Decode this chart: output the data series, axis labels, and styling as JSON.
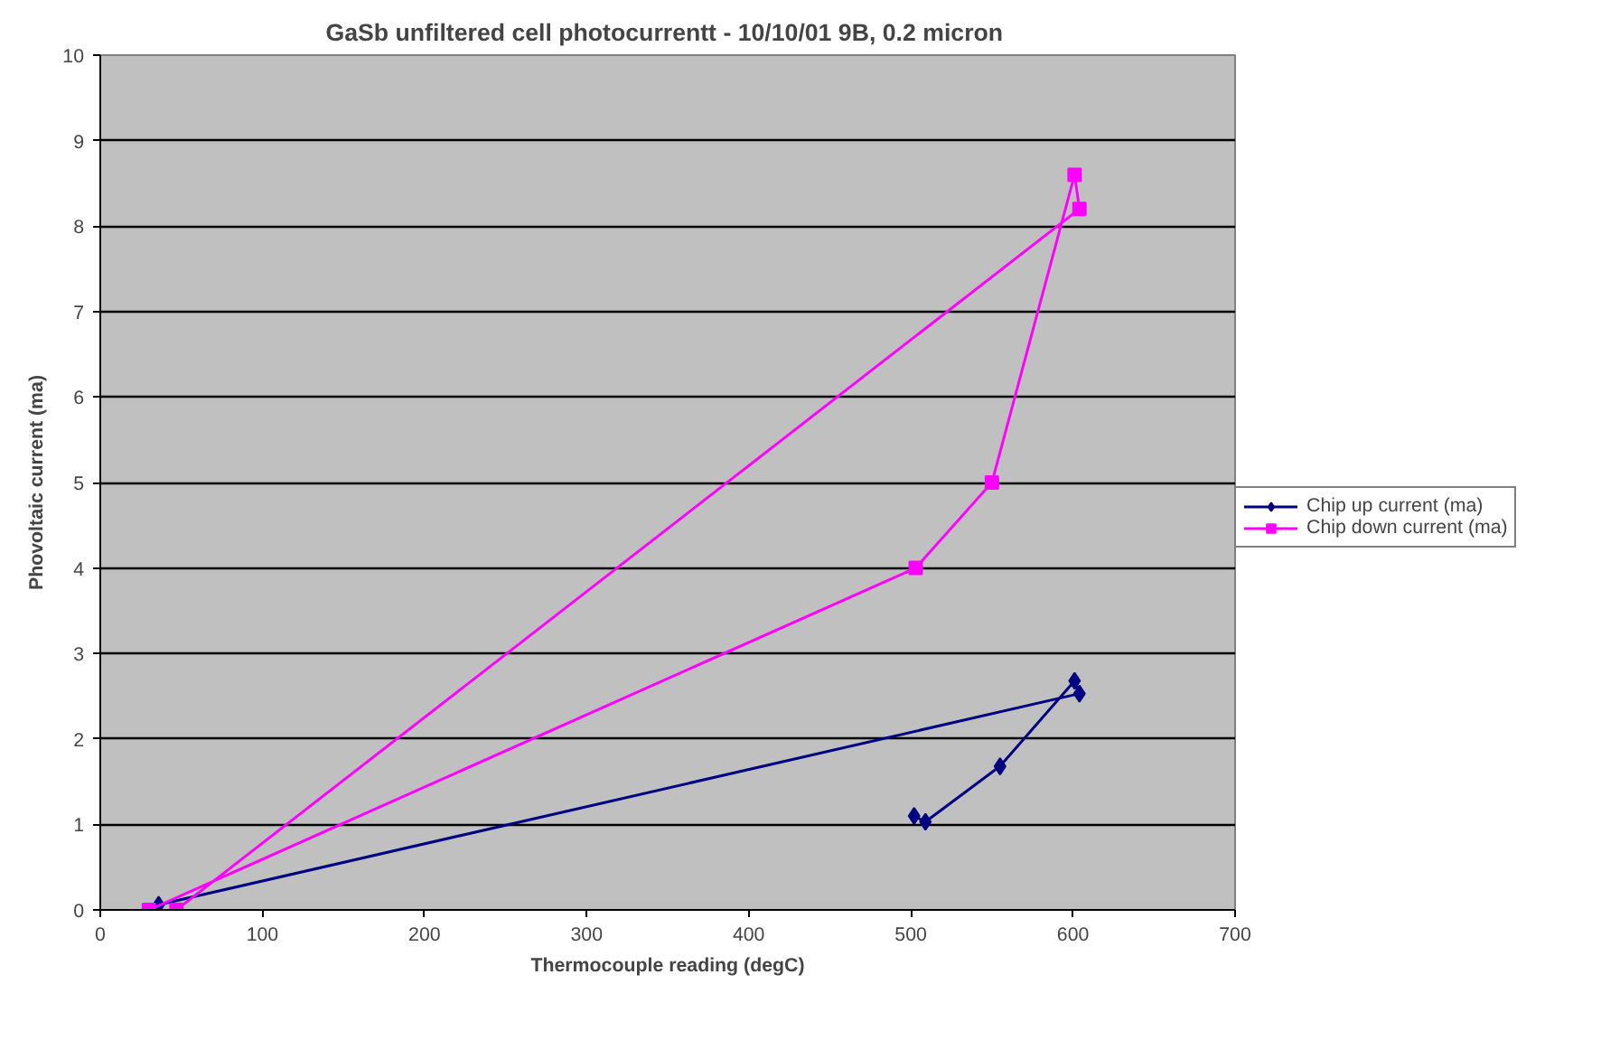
{
  "chart_data": {
    "type": "line",
    "title": "GaSb unfiltered cell photocurrentt - 10/10/01 9B,  0.2 micron",
    "xlabel": "Thermocouple reading (degC)",
    "ylabel": "Phovoltaic current (ma)",
    "xlim": [
      0,
      700
    ],
    "xticks": [
      0,
      100,
      200,
      300,
      400,
      500,
      600,
      700
    ],
    "ylim": [
      0,
      10
    ],
    "yticks": [
      0,
      1,
      2,
      3,
      4,
      5,
      6,
      7,
      8,
      9,
      10
    ],
    "grid": "y",
    "legend": "right",
    "series": [
      {
        "name": "Chip up current (ma)",
        "color": "#000080",
        "marker": "diamond",
        "x": [
          502,
          509,
          555,
          601,
          604,
          36
        ],
        "values": [
          1.1,
          1.03,
          1.68,
          2.68,
          2.53,
          0.06
        ]
      },
      {
        "name": "Chip down current (ma)",
        "color": "#ff00ff",
        "marker": "square",
        "x": [
          30,
          503,
          550,
          601,
          604,
          47
        ],
        "values": [
          0,
          4,
          5,
          8.6,
          8.2,
          0
        ]
      }
    ]
  }
}
